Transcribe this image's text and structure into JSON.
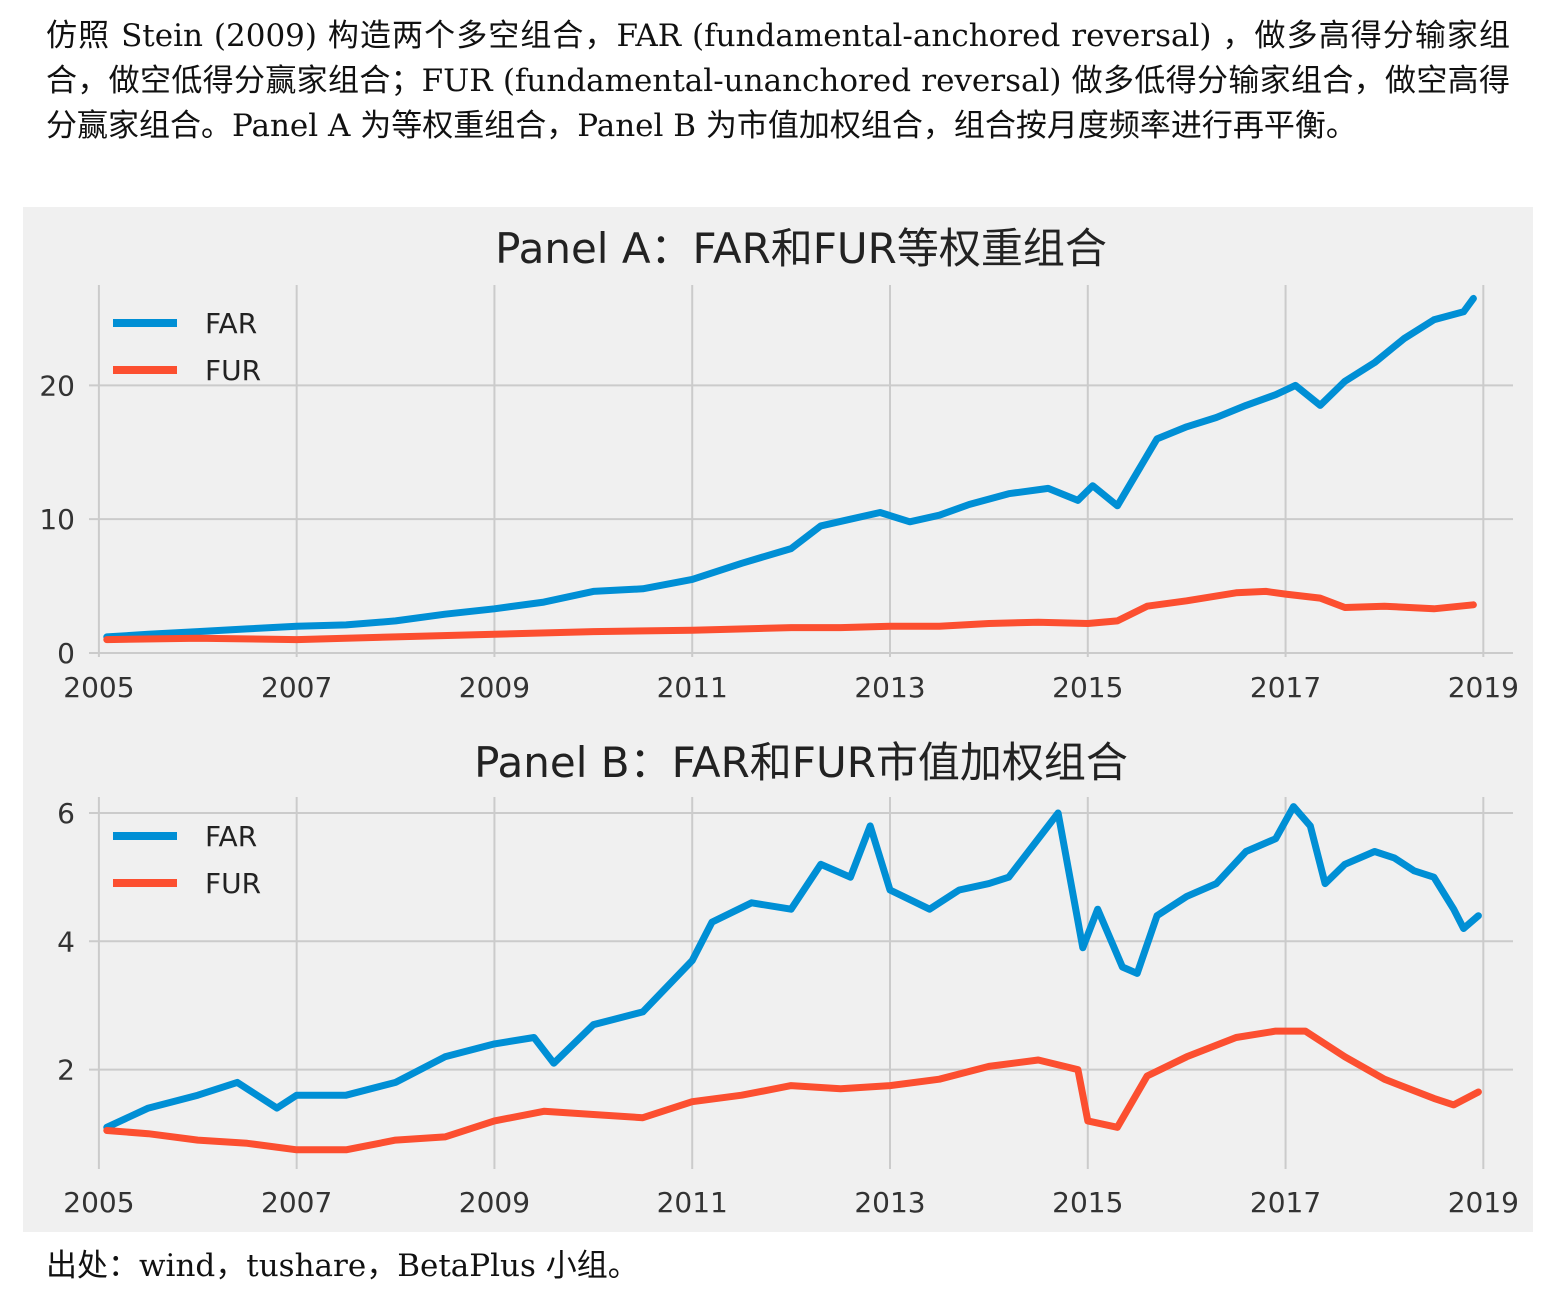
{
  "caption": "仿照 Stein (2009) 构造两个多空组合，FAR (fundamental-anchored reversal) ，做多高得分输家组合，做空低得分赢家组合；FUR (fundamental-unanchored reversal) 做多低得分输家组合，做空高得分赢家组合。Panel A 为等权重组合，Panel B 为市值加权组合，组合按月度频率进行再平衡。",
  "source": "出处：wind，tushare，BetaPlus 小组。",
  "colors": {
    "FAR": "#008fd5",
    "FUR": "#fc4f30",
    "background": "#f0f0f0",
    "grid": "#cbcbcb"
  },
  "chart_data": [
    {
      "type": "line",
      "title": "Panel A：FAR和FUR等权重组合",
      "xlabel": "",
      "ylabel": "",
      "xlim": [
        2004.9,
        2019.3
      ],
      "ylim": [
        -0.3,
        27.5
      ],
      "x_ticks": [
        "2005",
        "2007",
        "2009",
        "2011",
        "2013",
        "2015",
        "2017",
        "2019"
      ],
      "y_ticks": [
        "0",
        "10",
        "20"
      ],
      "grid": true,
      "legend": "top-left",
      "series": [
        {
          "name": "FAR",
          "x": [
            2005.08,
            2005.5,
            2006.0,
            2006.5,
            2007.0,
            2007.5,
            2008.0,
            2008.5,
            2009.0,
            2009.5,
            2010.0,
            2010.5,
            2011.0,
            2011.5,
            2012.0,
            2012.3,
            2012.6,
            2012.9,
            2013.2,
            2013.5,
            2013.8,
            2014.2,
            2014.6,
            2014.9,
            2015.05,
            2015.3,
            2015.5,
            2015.7,
            2016.0,
            2016.3,
            2016.6,
            2016.9,
            2017.1,
            2017.35,
            2017.6,
            2017.9,
            2018.2,
            2018.5,
            2018.8,
            2018.9
          ],
          "y": [
            1.2,
            1.4,
            1.6,
            1.8,
            2.0,
            2.1,
            2.4,
            2.9,
            3.3,
            3.8,
            4.6,
            4.8,
            5.5,
            6.7,
            7.8,
            9.5,
            10.0,
            10.5,
            9.8,
            10.3,
            11.1,
            11.9,
            12.3,
            11.4,
            12.5,
            11.0,
            13.5,
            16.0,
            16.9,
            17.6,
            18.5,
            19.3,
            20.0,
            18.5,
            20.3,
            21.7,
            23.5,
            24.9,
            25.5,
            26.5
          ]
        },
        {
          "name": "FUR",
          "x": [
            2005.08,
            2006.0,
            2007.0,
            2008.0,
            2009.0,
            2010.0,
            2011.0,
            2012.0,
            2012.5,
            2013.0,
            2013.5,
            2014.0,
            2014.5,
            2015.0,
            2015.3,
            2015.6,
            2016.0,
            2016.5,
            2016.8,
            2017.0,
            2017.35,
            2017.6,
            2018.0,
            2018.5,
            2018.9
          ],
          "y": [
            1.0,
            1.1,
            1.0,
            1.2,
            1.4,
            1.6,
            1.7,
            1.9,
            1.9,
            2.0,
            2.0,
            2.2,
            2.3,
            2.2,
            2.4,
            3.5,
            3.9,
            4.5,
            4.6,
            4.4,
            4.1,
            3.4,
            3.5,
            3.3,
            3.6
          ]
        }
      ]
    },
    {
      "type": "line",
      "title": "Panel B：FAR和FUR市值加权组合",
      "xlabel": "",
      "ylabel": "",
      "xlim": [
        2004.9,
        2019.3
      ],
      "ylim": [
        0.45,
        6.25
      ],
      "x_ticks": [
        "2005",
        "2007",
        "2009",
        "2011",
        "2013",
        "2015",
        "2017",
        "2019"
      ],
      "y_ticks": [
        "2",
        "4",
        "6"
      ],
      "grid": true,
      "legend": "top-left",
      "series": [
        {
          "name": "FAR",
          "x": [
            2005.08,
            2005.5,
            2006.0,
            2006.4,
            2006.8,
            2007.0,
            2007.5,
            2008.0,
            2008.5,
            2009.0,
            2009.4,
            2009.6,
            2010.0,
            2010.5,
            2011.0,
            2011.2,
            2011.6,
            2012.0,
            2012.3,
            2012.6,
            2012.8,
            2013.0,
            2013.4,
            2013.7,
            2014.0,
            2014.2,
            2014.5,
            2014.7,
            2014.95,
            2015.1,
            2015.35,
            2015.5,
            2015.7,
            2016.0,
            2016.3,
            2016.6,
            2016.9,
            2017.08,
            2017.25,
            2017.4,
            2017.6,
            2017.9,
            2018.1,
            2018.3,
            2018.5,
            2018.7,
            2018.8,
            2018.95
          ],
          "y": [
            1.1,
            1.4,
            1.6,
            1.8,
            1.4,
            1.6,
            1.6,
            1.8,
            2.2,
            2.4,
            2.5,
            2.1,
            2.7,
            2.9,
            3.7,
            4.3,
            4.6,
            4.5,
            5.2,
            5.0,
            5.8,
            4.8,
            4.5,
            4.8,
            4.9,
            5.0,
            5.6,
            6.0,
            3.9,
            4.5,
            3.6,
            3.5,
            4.4,
            4.7,
            4.9,
            5.4,
            5.6,
            6.1,
            5.8,
            4.9,
            5.2,
            5.4,
            5.3,
            5.1,
            5.0,
            4.5,
            4.2,
            4.4
          ]
        },
        {
          "name": "FUR",
          "x": [
            2005.08,
            2005.5,
            2006.0,
            2006.5,
            2007.0,
            2007.5,
            2008.0,
            2008.5,
            2009.0,
            2009.5,
            2010.0,
            2010.5,
            2011.0,
            2011.5,
            2012.0,
            2012.5,
            2013.0,
            2013.5,
            2014.0,
            2014.5,
            2014.9,
            2015.0,
            2015.3,
            2015.6,
            2016.0,
            2016.5,
            2016.9,
            2017.2,
            2017.6,
            2018.0,
            2018.5,
            2018.7,
            2018.95
          ],
          "y": [
            1.05,
            1.0,
            0.9,
            0.85,
            0.75,
            0.75,
            0.9,
            0.95,
            1.2,
            1.35,
            1.3,
            1.25,
            1.5,
            1.6,
            1.75,
            1.7,
            1.75,
            1.85,
            2.05,
            2.15,
            2.0,
            1.2,
            1.1,
            1.9,
            2.2,
            2.5,
            2.6,
            2.6,
            2.2,
            1.85,
            1.55,
            1.45,
            1.65
          ]
        }
      ]
    }
  ]
}
